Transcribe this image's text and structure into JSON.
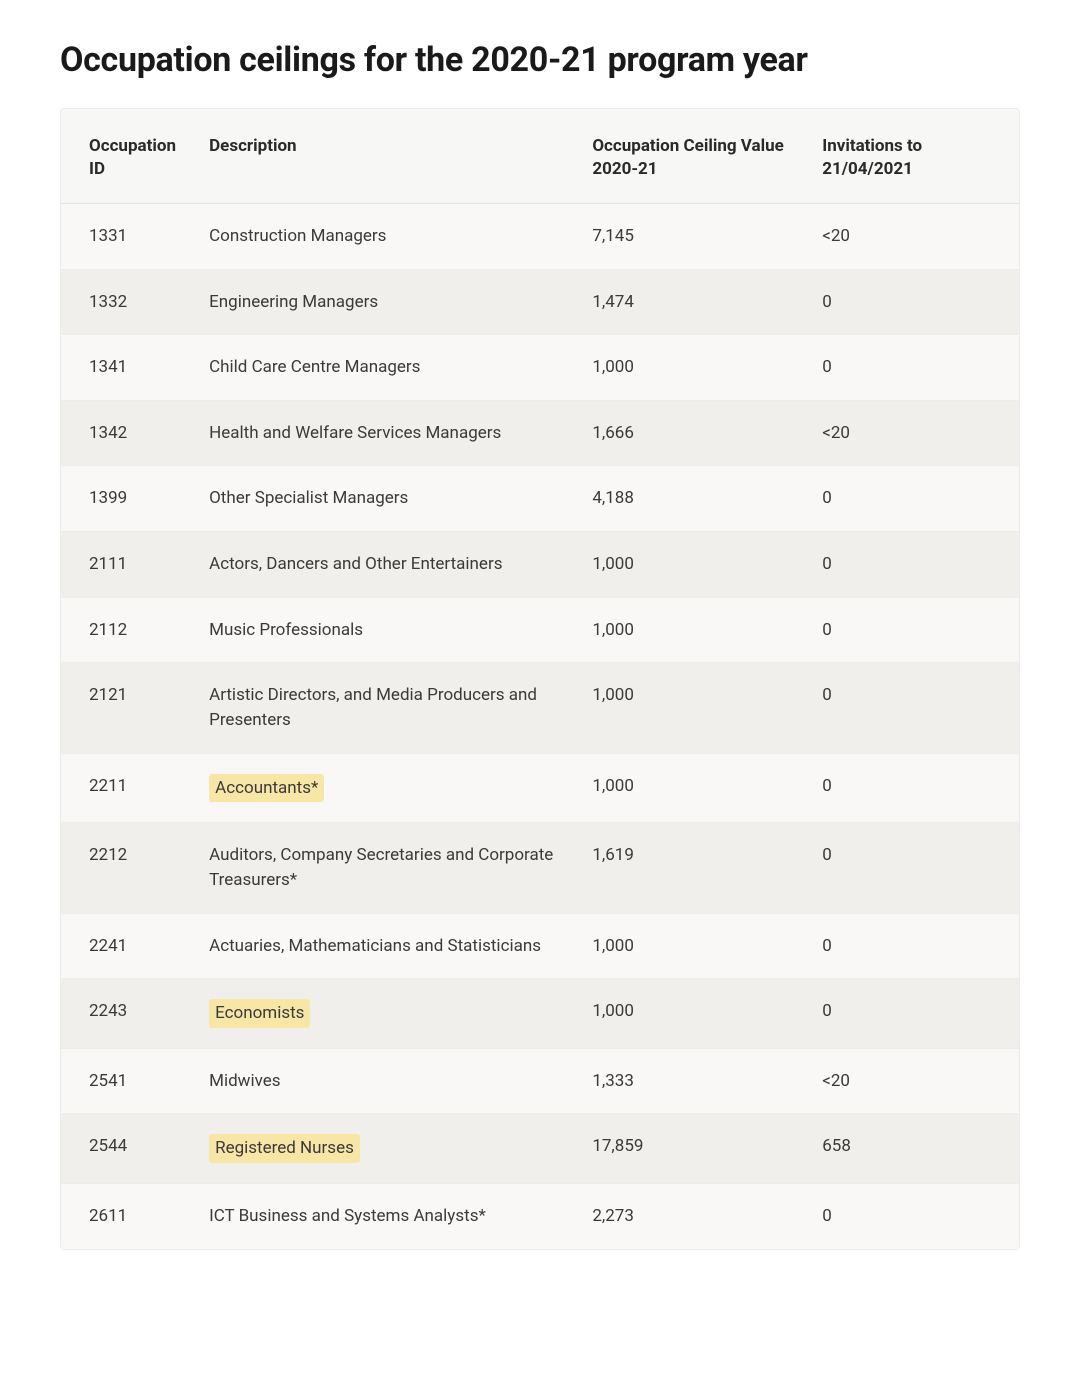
{
  "title": "Occupation ceilings for the 2020-21 program year",
  "columns": [
    "Occupation ID",
    "Description",
    "Occupation Ceiling Value 2020-21",
    "Invitations to 21/04/2021"
  ],
  "rows": [
    {
      "id": "1331",
      "desc": "Construction Managers",
      "ceiling": "7,145",
      "inv": "<20",
      "hl": false
    },
    {
      "id": "1332",
      "desc": "Engineering Managers",
      "ceiling": "1,474",
      "inv": "0",
      "hl": false
    },
    {
      "id": "1341",
      "desc": "Child Care Centre Managers",
      "ceiling": "1,000",
      "inv": "0",
      "hl": false
    },
    {
      "id": "1342",
      "desc": "Health and Welfare Services Managers",
      "ceiling": "1,666",
      "inv": "<20",
      "hl": false
    },
    {
      "id": "1399",
      "desc": "Other Specialist Managers",
      "ceiling": "4,188",
      "inv": "0",
      "hl": false
    },
    {
      "id": "2111",
      "desc": "Actors, Dancers and Other Entertainers",
      "ceiling": "1,000",
      "inv": "0",
      "hl": false
    },
    {
      "id": "2112",
      "desc": "Music Professionals",
      "ceiling": "1,000",
      "inv": "0",
      "hl": false
    },
    {
      "id": "2121",
      "desc": "Artistic Directors, and Media Producers and Presenters",
      "ceiling": "1,000",
      "inv": "0",
      "hl": false
    },
    {
      "id": "2211",
      "desc": "Accountants*",
      "ceiling": "1,000",
      "inv": "0",
      "hl": true
    },
    {
      "id": "2212",
      "desc": "Auditors, Company Secretaries and Corporate Treasurers*",
      "ceiling": "1,619",
      "inv": "0",
      "hl": false
    },
    {
      "id": "2241",
      "desc": "Actuaries, Mathematicians and Statisticians",
      "ceiling": "1,000",
      "inv": "0",
      "hl": false
    },
    {
      "id": "2243",
      "desc": "Economists",
      "ceiling": "1,000",
      "inv": "0",
      "hl": true
    },
    {
      "id": "2541",
      "desc": "Midwives",
      "ceiling": "1,333",
      "inv": "<20",
      "hl": false
    },
    {
      "id": "2544",
      "desc": "Registered Nurses",
      "ceiling": "17,859",
      "inv": "658",
      "hl": true
    },
    {
      "id": "2611",
      "desc": "ICT Business and Systems Analysts*",
      "ceiling": "2,273",
      "inv": "0",
      "hl": false
    }
  ],
  "style": {
    "title_fontsize": 34,
    "body_fontsize": 17,
    "highlight_bg": "#f7e6a6",
    "row_even_bg": "#f0efec",
    "row_odd_bg": "#f9f8f6",
    "wrap_bg": "#f7f7f5",
    "border_color": "#eceae6"
  }
}
